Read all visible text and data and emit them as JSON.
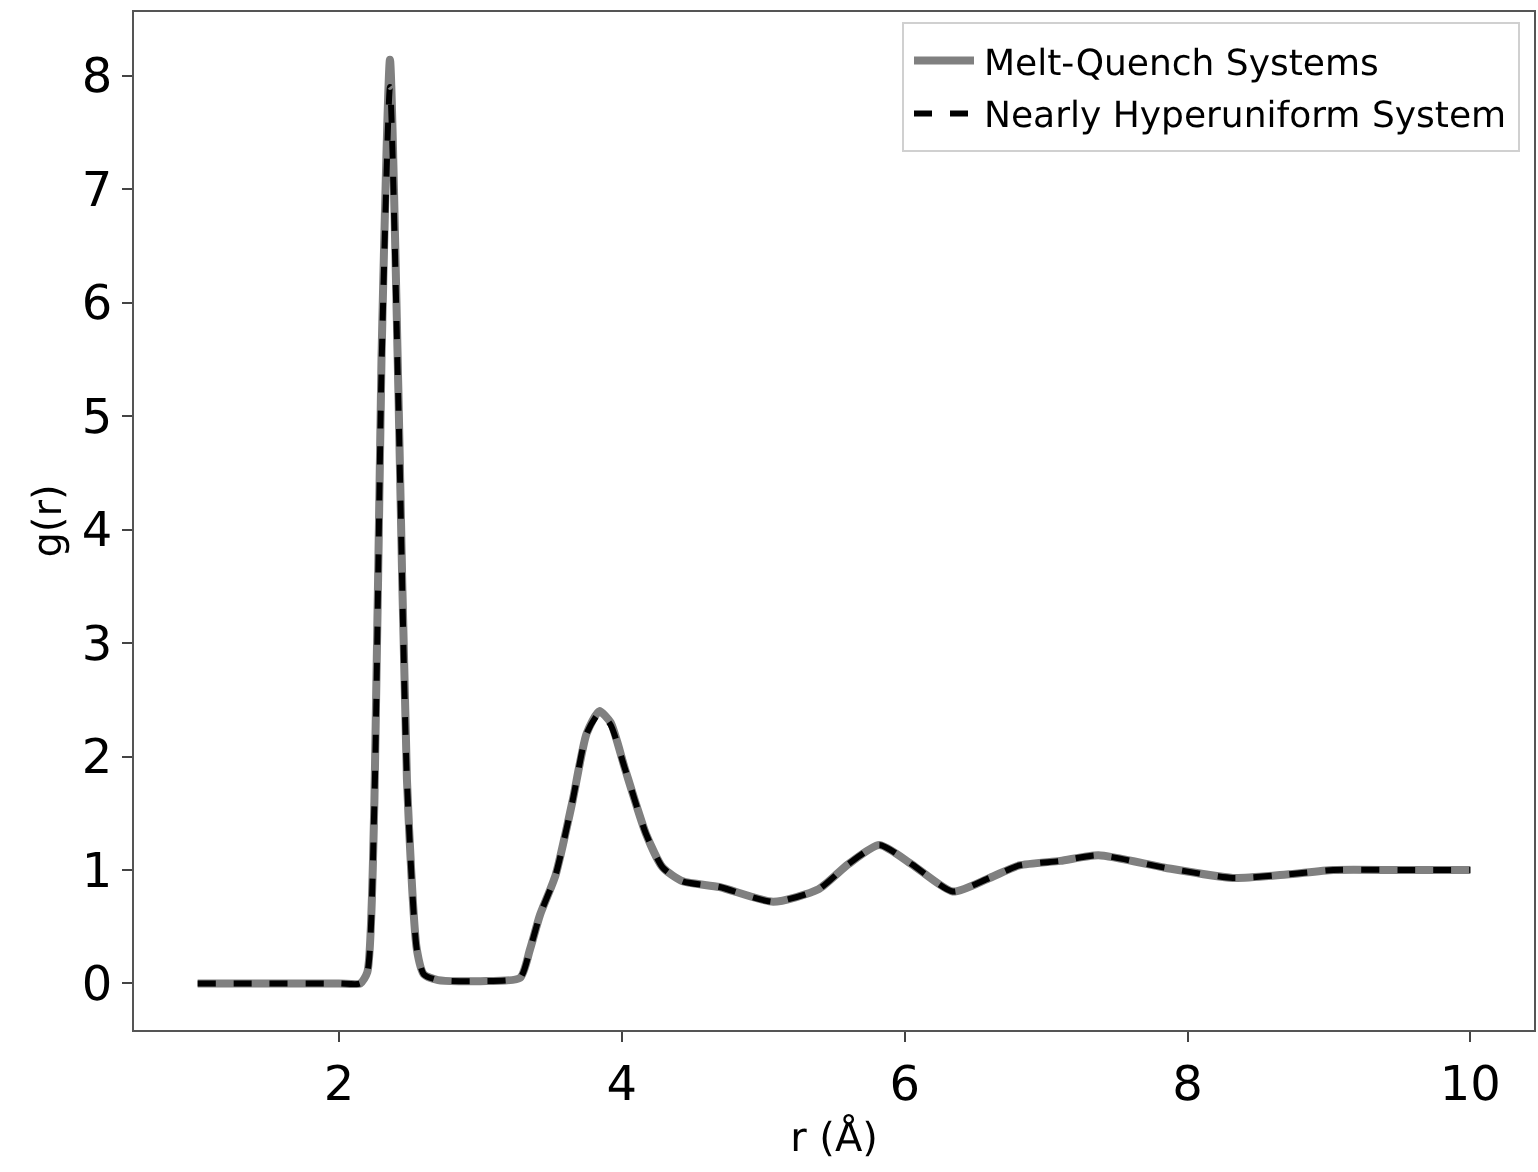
{
  "chart_data": {
    "type": "line",
    "xlabel": "r (Å)",
    "ylabel": "g(r)",
    "x": [
      1,
      1.5,
      2,
      2.15,
      2.2,
      2.25,
      2.3,
      2.36,
      2.42,
      2.48,
      2.55,
      2.6,
      2.7,
      3,
      3.28,
      3.35,
      3.42,
      3.53,
      3.65,
      3.75,
      3.84,
      3.92,
      4.02,
      4.17,
      4.29,
      4.43,
      4.69,
      5.07,
      5.39,
      5.6,
      5.82,
      6.05,
      6.34,
      6.6,
      6.81,
      7.1,
      7.37,
      7.84,
      8.32,
      8.7,
      9.03,
      9.5,
      10
    ],
    "series": [
      {
        "name": "Melt-Quench Systems",
        "color": "#808080",
        "line_style": "solid",
        "values": [
          0,
          0,
          0,
          0,
          0.1,
          1.6,
          5.5,
          8.14,
          5.2,
          1.8,
          0.3,
          0.08,
          0.03,
          0.02,
          0.05,
          0.3,
          0.6,
          0.95,
          1.6,
          2.2,
          2.4,
          2.3,
          1.9,
          1.32,
          1.02,
          0.9,
          0.85,
          0.72,
          0.83,
          1.05,
          1.22,
          1.05,
          0.81,
          0.93,
          1.04,
          1.08,
          1.13,
          1.02,
          0.93,
          0.96,
          1,
          1,
          1
        ]
      },
      {
        "name": "Nearly Hyperuniform System",
        "color": "#000000",
        "line_style": "dashed",
        "values": [
          0,
          0,
          0,
          0,
          0.1,
          1.6,
          5.4,
          7.9,
          5.1,
          1.8,
          0.3,
          0.08,
          0.03,
          0.02,
          0.05,
          0.3,
          0.6,
          0.95,
          1.6,
          2.2,
          2.38,
          2.28,
          1.9,
          1.32,
          1.02,
          0.9,
          0.85,
          0.72,
          0.83,
          1.05,
          1.22,
          1.05,
          0.81,
          0.93,
          1.04,
          1.08,
          1.13,
          1.02,
          0.93,
          0.96,
          1,
          1,
          1
        ]
      }
    ],
    "xlim": [
      0.55,
      10.45
    ],
    "ylim": [
      -0.41,
      8.56
    ],
    "xticks": [
      2,
      4,
      6,
      8,
      10
    ],
    "yticks": [
      0,
      1,
      2,
      3,
      4,
      5,
      6,
      7,
      8
    ],
    "grid": false,
    "legend": "top right",
    "marker": "none"
  }
}
